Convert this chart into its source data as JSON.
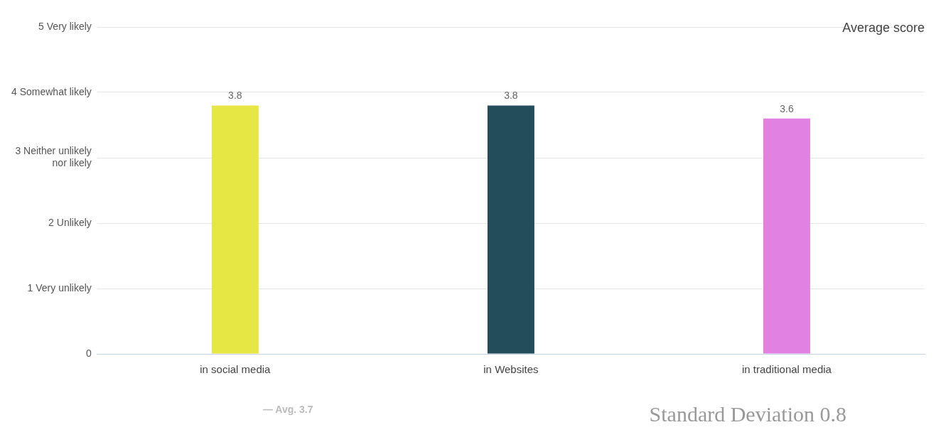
{
  "chart_data": {
    "type": "bar",
    "categories": [
      "in social media",
      "in Websites",
      "in traditional media"
    ],
    "values": [
      3.8,
      3.8,
      3.6
    ],
    "colors": [
      "#e6e645",
      "#234d5a",
      "#e182e2"
    ],
    "ylim": [
      0,
      5
    ],
    "yticks": [
      0,
      {
        "value": 1,
        "label": "1 Very unlikely"
      },
      {
        "value": 2,
        "label": "2 Unlikely"
      },
      {
        "value": 3,
        "label": "3 Neither unlikely nor likely"
      },
      {
        "value": 4,
        "label": "4 Somewhat likely"
      },
      {
        "value": 5,
        "label": "5 Very likely"
      }
    ],
    "grid": "y",
    "legend": false,
    "data_labels": true,
    "annotations": [
      "Average score",
      "— Avg. 3.7",
      "Standard Deviation 0.8"
    ]
  }
}
